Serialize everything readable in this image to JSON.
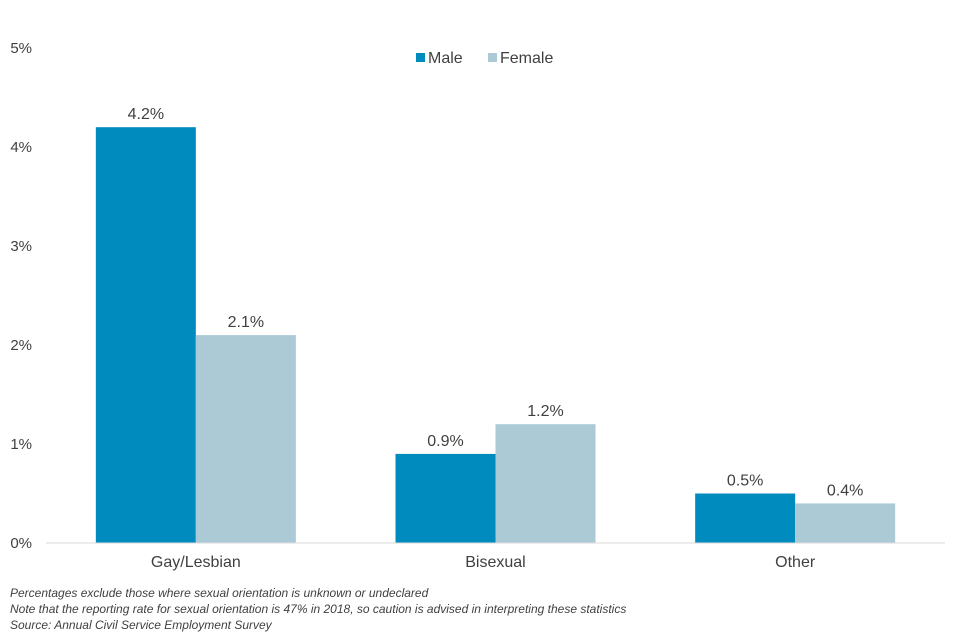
{
  "chart_data": {
    "type": "bar",
    "categories": [
      "Gay/Lesbian",
      "Bisexual",
      "Other"
    ],
    "series": [
      {
        "name": "Male",
        "values": [
          4.2,
          0.9,
          0.5
        ],
        "labels": [
          "4.2%",
          "0.9%",
          "0.5%"
        ],
        "color": "#008BBF"
      },
      {
        "name": "Female",
        "values": [
          2.1,
          1.2,
          0.4
        ],
        "labels": [
          "2.1%",
          "1.2%",
          "0.4%"
        ],
        "color": "#ABCAD6"
      }
    ],
    "yticks": [
      "0%",
      "1%",
      "2%",
      "3%",
      "4%",
      "5%"
    ],
    "ylim": [
      0,
      5
    ],
    "grid": false,
    "legend": "top-center"
  },
  "notes": [
    "Percentages exclude those where  sexual orientation  is unknown  or undeclared",
    "Note that the reporting rate for sexual orientation is 47% in 2018, so caution is advised in interpreting these statistics",
    "Source: Annual Civil Service Employment Survey"
  ]
}
